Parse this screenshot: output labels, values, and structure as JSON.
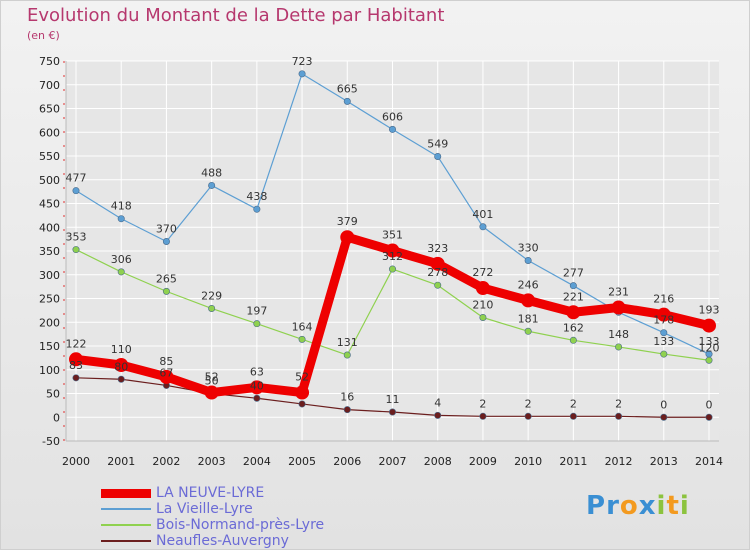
{
  "chart_data": {
    "type": "line",
    "title": "Evolution du Montant de la Dette par Habitant",
    "unit_label": "(en €)",
    "x": [
      "2000",
      "2001",
      "2002",
      "2003",
      "2004",
      "2005",
      "2006",
      "2007",
      "2008",
      "2009",
      "2010",
      "2011",
      "2012",
      "2013",
      "2014"
    ],
    "y_ticks": [
      "750",
      "700",
      "650",
      "600",
      "550",
      "500",
      "450",
      "400",
      "350",
      "300",
      "250",
      "200",
      "150",
      "100",
      "50",
      "0",
      "-50"
    ],
    "ylim": [
      -50,
      750
    ],
    "grid": true,
    "legend_position": "bottom-left",
    "series": [
      {
        "name": "LA NEUVE-LYRE",
        "color": "#ee0000",
        "values": [
          122,
          110,
          85,
          52,
          63,
          52,
          379,
          351,
          323,
          272,
          246,
          221,
          231,
          216,
          193
        ],
        "labels": [
          "122",
          "110",
          "85",
          "52",
          "63",
          "52",
          "379",
          "351",
          "323",
          "272",
          "246",
          "221",
          "231",
          "216",
          "193"
        ]
      },
      {
        "name": "La Vieille-Lyre",
        "color": "#5d9fd3",
        "values": [
          477,
          418,
          370,
          488,
          438,
          723,
          665,
          606,
          549,
          401,
          330,
          277,
          221,
          178,
          133
        ],
        "labels": [
          "477",
          "418",
          "370",
          "488",
          "438",
          "723",
          "665",
          "606",
          "549",
          "401",
          "330",
          "277",
          "",
          "178",
          "133"
        ]
      },
      {
        "name": "Bois-Normand-près-Lyre",
        "color": "#8fd14f",
        "values": [
          353,
          306,
          265,
          229,
          197,
          164,
          131,
          312,
          278,
          210,
          181,
          162,
          148,
          133,
          120
        ],
        "labels": [
          "353",
          "306",
          "265",
          "229",
          "197",
          "164",
          "131",
          "312",
          "278",
          "210",
          "181",
          "162",
          "148",
          "133",
          "120"
        ]
      },
      {
        "name": "Neaufles-Auvergny",
        "color": "#6b1e1e",
        "values": [
          83,
          80,
          67,
          50,
          40,
          28,
          16,
          11,
          4,
          2,
          2,
          2,
          2,
          0,
          0
        ],
        "labels": [
          "83",
          "80",
          "67",
          "50",
          "40",
          "",
          "16",
          "11",
          "4",
          "2",
          "2",
          "2",
          "2",
          "0",
          "0"
        ]
      }
    ]
  },
  "logo": {
    "text": "Proxiti"
  }
}
